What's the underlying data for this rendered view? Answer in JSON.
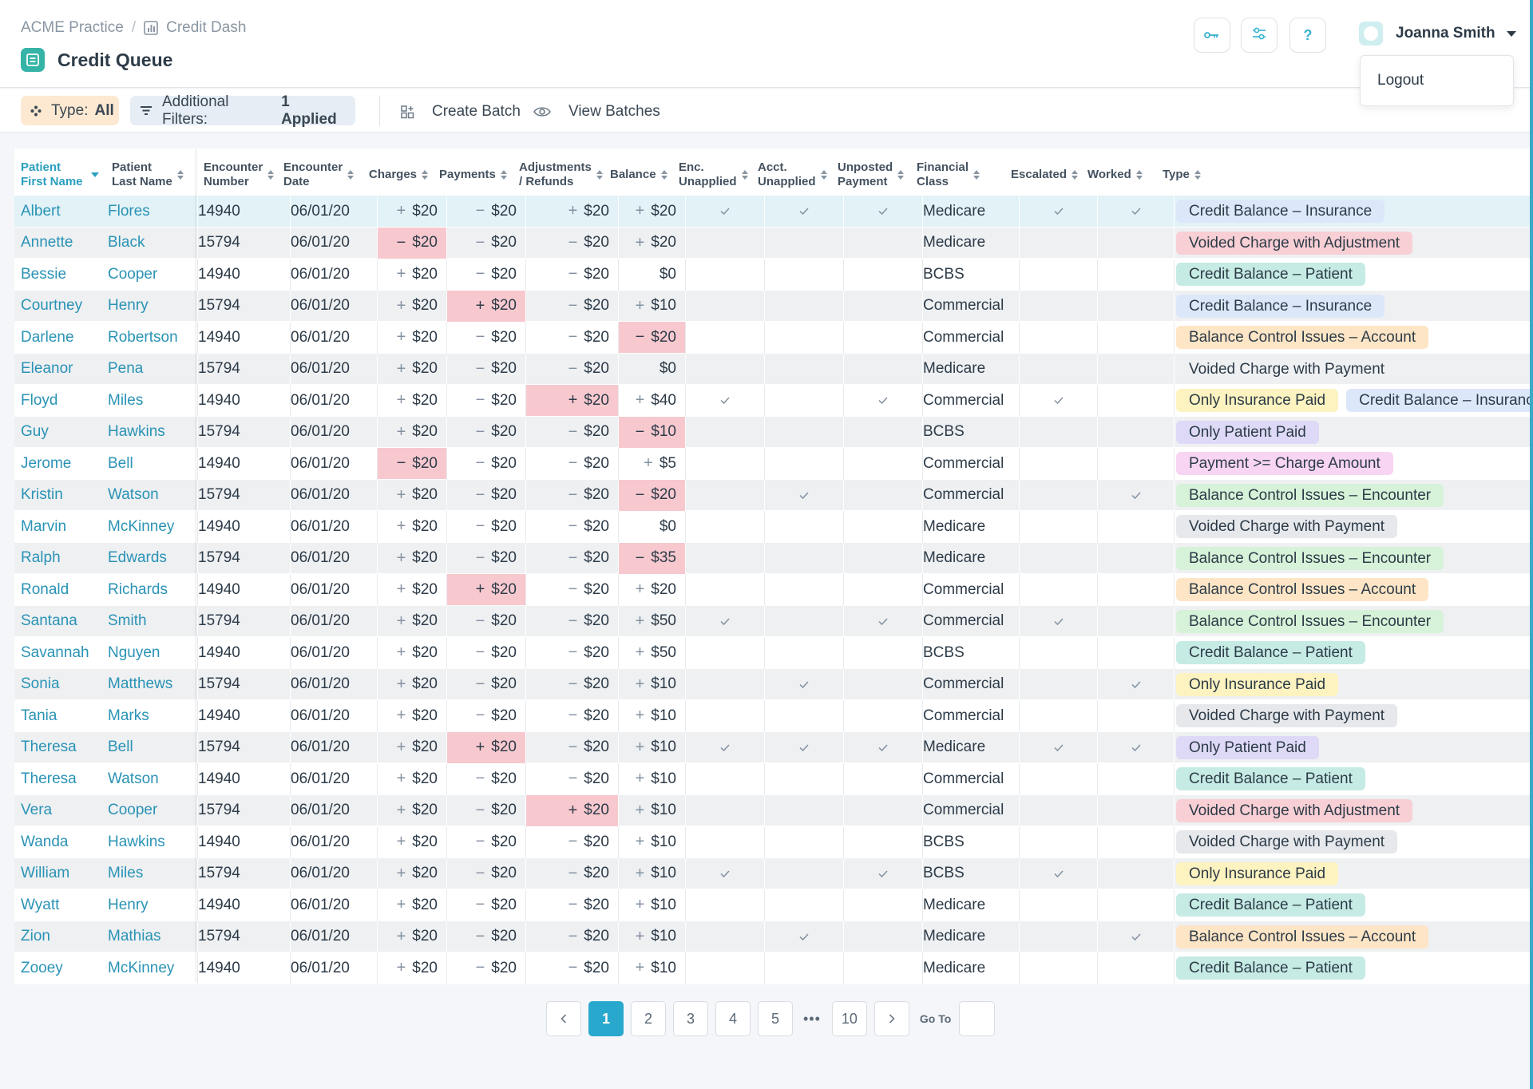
{
  "breadcrumb": {
    "root": "ACME Practice",
    "separator": "/",
    "current": "Credit Dash"
  },
  "page_title": "Credit Queue",
  "user": {
    "name": "Joanna Smith",
    "menu_item": "Logout"
  },
  "header_buttons": {
    "help": "?"
  },
  "toolbar": {
    "type_label": "Type:",
    "type_value": "All",
    "filters_label": "Additional Filters:",
    "filters_value": "1 Applied",
    "create_batch": "Create Batch",
    "view_batches": "View Batches"
  },
  "columns": [
    [
      "Patient",
      "First Name"
    ],
    [
      "Patient",
      "Last Name"
    ],
    [
      "Encounter",
      "Number"
    ],
    [
      "Encounter",
      "Date"
    ],
    [
      "Charges"
    ],
    [
      "Payments"
    ],
    [
      "Adjustments",
      "/ Refunds"
    ],
    [
      "Balance"
    ],
    [
      "Enc.",
      "Unapplied"
    ],
    [
      "Acct.",
      "Unapplied"
    ],
    [
      "Unposted",
      "Payment"
    ],
    [
      "Financial",
      "Class"
    ],
    [
      "Escalated"
    ],
    [
      "Worked"
    ],
    [
      "Type"
    ]
  ],
  "type_colors": {
    "Credit Balance – Insurance": "#dce8fa",
    "Voided Charge with Adjustment": "#f8cfd4",
    "Credit Balance – Patient": "#c6ebe4",
    "Balance Control Issues – Account": "#fde5c5",
    "Voided Charge with Payment": "#e6e8eb",
    "Only Insurance Paid": "#fdf3c0",
    "Only Patient Paid": "#ddd9f6",
    "Payment >= Charge Amount": "#f8d5f3",
    "Balance Control Issues – Encounter": "#d6f2d8"
  },
  "rows": [
    {
      "first": "Albert",
      "last": "Flores",
      "num": "14940",
      "date": "06/01/20",
      "charges": [
        "+",
        "$20",
        false
      ],
      "payments": [
        "−",
        "$20",
        false
      ],
      "adjustments": [
        "+",
        "$20",
        false
      ],
      "balance": [
        "+",
        "$20",
        false
      ],
      "enc": true,
      "acct": true,
      "unposted": true,
      "fclass": "Medicare",
      "escalated": true,
      "worked": true,
      "types": [
        [
          "Credit Balance – Insurance",
          true
        ]
      ],
      "selected": true
    },
    {
      "first": "Annette",
      "last": "Black",
      "num": "15794",
      "date": "06/01/20",
      "charges": [
        "−",
        "$20",
        true
      ],
      "payments": [
        "−",
        "$20",
        false
      ],
      "adjustments": [
        "−",
        "$20",
        false
      ],
      "balance": [
        "+",
        "$20",
        false
      ],
      "enc": false,
      "acct": false,
      "unposted": false,
      "fclass": "Medicare",
      "escalated": false,
      "worked": false,
      "types": [
        [
          "Voided Charge with Adjustment",
          true
        ]
      ]
    },
    {
      "first": "Bessie",
      "last": "Cooper",
      "num": "14940",
      "date": "06/01/20",
      "charges": [
        "+",
        "$20",
        false
      ],
      "payments": [
        "−",
        "$20",
        false
      ],
      "adjustments": [
        "−",
        "$20",
        false
      ],
      "balance": [
        "",
        "$0",
        false
      ],
      "enc": false,
      "acct": false,
      "unposted": false,
      "fclass": "BCBS",
      "escalated": false,
      "worked": false,
      "types": [
        [
          "Credit Balance – Patient",
          true
        ]
      ]
    },
    {
      "first": "Courtney",
      "last": "Henry",
      "num": "15794",
      "date": "06/01/20",
      "charges": [
        "+",
        "$20",
        false
      ],
      "payments": [
        "+",
        "$20",
        true
      ],
      "adjustments": [
        "−",
        "$20",
        false
      ],
      "balance": [
        "+",
        "$10",
        false
      ],
      "enc": false,
      "acct": false,
      "unposted": false,
      "fclass": "Commercial",
      "escalated": false,
      "worked": false,
      "types": [
        [
          "Credit Balance – Insurance",
          true
        ]
      ]
    },
    {
      "first": "Darlene",
      "last": "Robertson",
      "num": "14940",
      "date": "06/01/20",
      "charges": [
        "+",
        "$20",
        false
      ],
      "payments": [
        "−",
        "$20",
        false
      ],
      "adjustments": [
        "−",
        "$20",
        false
      ],
      "balance": [
        "−",
        "$20",
        true
      ],
      "enc": false,
      "acct": false,
      "unposted": false,
      "fclass": "Commercial",
      "escalated": false,
      "worked": false,
      "types": [
        [
          "Balance Control Issues – Account",
          true
        ]
      ]
    },
    {
      "first": "Eleanor",
      "last": "Pena",
      "num": "15794",
      "date": "06/01/20",
      "charges": [
        "+",
        "$20",
        false
      ],
      "payments": [
        "−",
        "$20",
        false
      ],
      "adjustments": [
        "−",
        "$20",
        false
      ],
      "balance": [
        "",
        "$0",
        false
      ],
      "enc": false,
      "acct": false,
      "unposted": false,
      "fclass": "Medicare",
      "escalated": false,
      "worked": false,
      "types": [
        [
          "Voided Charge with Payment",
          true
        ]
      ]
    },
    {
      "first": "Floyd",
      "last": "Miles",
      "num": "14940",
      "date": "06/01/20",
      "charges": [
        "+",
        "$20",
        false
      ],
      "payments": [
        "−",
        "$20",
        false
      ],
      "adjustments": [
        "+",
        "$20",
        true
      ],
      "balance": [
        "+",
        "$40",
        false
      ],
      "enc": true,
      "acct": false,
      "unposted": true,
      "fclass": "Commercial",
      "escalated": true,
      "worked": false,
      "types": [
        [
          "Only Insurance Paid",
          true
        ],
        [
          "Credit Balance – Insurance",
          true
        ]
      ]
    },
    {
      "first": "Guy",
      "last": "Hawkins",
      "num": "15794",
      "date": "06/01/20",
      "charges": [
        "+",
        "$20",
        false
      ],
      "payments": [
        "−",
        "$20",
        false
      ],
      "adjustments": [
        "−",
        "$20",
        false
      ],
      "balance": [
        "−",
        "$10",
        true
      ],
      "enc": false,
      "acct": false,
      "unposted": false,
      "fclass": "BCBS",
      "escalated": false,
      "worked": false,
      "types": [
        [
          "Only Patient Paid",
          true
        ]
      ]
    },
    {
      "first": "Jerome",
      "last": "Bell",
      "num": "14940",
      "date": "06/01/20",
      "charges": [
        "−",
        "$20",
        true
      ],
      "payments": [
        "−",
        "$20",
        false
      ],
      "adjustments": [
        "−",
        "$20",
        false
      ],
      "balance": [
        "+",
        "$5",
        false
      ],
      "enc": false,
      "acct": false,
      "unposted": false,
      "fclass": "Commercial",
      "escalated": false,
      "worked": false,
      "types": [
        [
          "Payment >= Charge Amount",
          true
        ]
      ]
    },
    {
      "first": "Kristin",
      "last": "Watson",
      "num": "15794",
      "date": "06/01/20",
      "charges": [
        "+",
        "$20",
        false
      ],
      "payments": [
        "−",
        "$20",
        false
      ],
      "adjustments": [
        "−",
        "$20",
        false
      ],
      "balance": [
        "−",
        "$20",
        true
      ],
      "enc": false,
      "acct": true,
      "unposted": false,
      "fclass": "Commercial",
      "escalated": false,
      "worked": true,
      "types": [
        [
          "Balance Control Issues – Encounter",
          true
        ]
      ]
    },
    {
      "first": "Marvin",
      "last": "McKinney",
      "num": "14940",
      "date": "06/01/20",
      "charges": [
        "+",
        "$20",
        false
      ],
      "payments": [
        "−",
        "$20",
        false
      ],
      "adjustments": [
        "−",
        "$20",
        false
      ],
      "balance": [
        "",
        "$0",
        false
      ],
      "enc": false,
      "acct": false,
      "unposted": false,
      "fclass": "Medicare",
      "escalated": false,
      "worked": false,
      "types": [
        [
          "Voided Charge with Payment",
          true
        ]
      ]
    },
    {
      "first": "Ralph",
      "last": "Edwards",
      "num": "15794",
      "date": "06/01/20",
      "charges": [
        "+",
        "$20",
        false
      ],
      "payments": [
        "−",
        "$20",
        false
      ],
      "adjustments": [
        "−",
        "$20",
        false
      ],
      "balance": [
        "−",
        "$35",
        true
      ],
      "enc": false,
      "acct": false,
      "unposted": false,
      "fclass": "Medicare",
      "escalated": false,
      "worked": false,
      "types": [
        [
          "Balance Control Issues – Encounter",
          true
        ]
      ]
    },
    {
      "first": "Ronald",
      "last": "Richards",
      "num": "14940",
      "date": "06/01/20",
      "charges": [
        "+",
        "$20",
        false
      ],
      "payments": [
        "+",
        "$20",
        true
      ],
      "adjustments": [
        "−",
        "$20",
        false
      ],
      "balance": [
        "+",
        "$20",
        false
      ],
      "enc": false,
      "acct": false,
      "unposted": false,
      "fclass": "Commercial",
      "escalated": false,
      "worked": false,
      "types": [
        [
          "Balance Control Issues – Account",
          true
        ]
      ]
    },
    {
      "first": "Santana",
      "last": "Smith",
      "num": "15794",
      "date": "06/01/20",
      "charges": [
        "+",
        "$20",
        false
      ],
      "payments": [
        "−",
        "$20",
        false
      ],
      "adjustments": [
        "−",
        "$20",
        false
      ],
      "balance": [
        "+",
        "$50",
        false
      ],
      "enc": true,
      "acct": false,
      "unposted": true,
      "fclass": "Commercial",
      "escalated": true,
      "worked": false,
      "types": [
        [
          "Balance Control Issues – Encounter",
          true
        ]
      ]
    },
    {
      "first": "Savannah",
      "last": "Nguyen",
      "num": "14940",
      "date": "06/01/20",
      "charges": [
        "+",
        "$20",
        false
      ],
      "payments": [
        "−",
        "$20",
        false
      ],
      "adjustments": [
        "−",
        "$20",
        false
      ],
      "balance": [
        "+",
        "$50",
        false
      ],
      "enc": false,
      "acct": false,
      "unposted": false,
      "fclass": "BCBS",
      "escalated": false,
      "worked": false,
      "types": [
        [
          "Credit Balance – Patient",
          true
        ]
      ]
    },
    {
      "first": "Sonia",
      "last": "Matthews",
      "num": "15794",
      "date": "06/01/20",
      "charges": [
        "+",
        "$20",
        false
      ],
      "payments": [
        "−",
        "$20",
        false
      ],
      "adjustments": [
        "−",
        "$20",
        false
      ],
      "balance": [
        "+",
        "$10",
        false
      ],
      "enc": false,
      "acct": true,
      "unposted": false,
      "fclass": "Commercial",
      "escalated": false,
      "worked": true,
      "types": [
        [
          "Only Insurance Paid",
          true
        ]
      ]
    },
    {
      "first": "Tania",
      "last": "Marks",
      "num": "14940",
      "date": "06/01/20",
      "charges": [
        "+",
        "$20",
        false
      ],
      "payments": [
        "−",
        "$20",
        false
      ],
      "adjustments": [
        "−",
        "$20",
        false
      ],
      "balance": [
        "+",
        "$10",
        false
      ],
      "enc": false,
      "acct": false,
      "unposted": false,
      "fclass": "Commercial",
      "escalated": false,
      "worked": false,
      "types": [
        [
          "Voided Charge with Payment",
          true
        ]
      ]
    },
    {
      "first": "Theresa",
      "last": "Bell",
      "num": "15794",
      "date": "06/01/20",
      "charges": [
        "+",
        "$20",
        false
      ],
      "payments": [
        "+",
        "$20",
        true
      ],
      "adjustments": [
        "−",
        "$20",
        false
      ],
      "balance": [
        "+",
        "$10",
        false
      ],
      "enc": true,
      "acct": true,
      "unposted": true,
      "fclass": "Medicare",
      "escalated": true,
      "worked": true,
      "types": [
        [
          "Only Patient Paid",
          true
        ]
      ]
    },
    {
      "first": "Theresa",
      "last": "Watson",
      "num": "14940",
      "date": "06/01/20",
      "charges": [
        "+",
        "$20",
        false
      ],
      "payments": [
        "−",
        "$20",
        false
      ],
      "adjustments": [
        "−",
        "$20",
        false
      ],
      "balance": [
        "+",
        "$10",
        false
      ],
      "enc": false,
      "acct": false,
      "unposted": false,
      "fclass": "Commercial",
      "escalated": false,
      "worked": false,
      "types": [
        [
          "Credit Balance – Patient",
          true
        ]
      ]
    },
    {
      "first": "Vera",
      "last": "Cooper",
      "num": "15794",
      "date": "06/01/20",
      "charges": [
        "+",
        "$20",
        false
      ],
      "payments": [
        "−",
        "$20",
        false
      ],
      "adjustments": [
        "+",
        "$20",
        true
      ],
      "balance": [
        "+",
        "$10",
        false
      ],
      "enc": false,
      "acct": false,
      "unposted": false,
      "fclass": "Commercial",
      "escalated": false,
      "worked": false,
      "types": [
        [
          "Voided Charge with Adjustment",
          true
        ]
      ]
    },
    {
      "first": "Wanda",
      "last": "Hawkins",
      "num": "14940",
      "date": "06/01/20",
      "charges": [
        "+",
        "$20",
        false
      ],
      "payments": [
        "−",
        "$20",
        false
      ],
      "adjustments": [
        "−",
        "$20",
        false
      ],
      "balance": [
        "+",
        "$10",
        false
      ],
      "enc": false,
      "acct": false,
      "unposted": false,
      "fclass": "BCBS",
      "escalated": false,
      "worked": false,
      "types": [
        [
          "Voided Charge with Payment",
          true
        ]
      ]
    },
    {
      "first": "William",
      "last": "Miles",
      "num": "15794",
      "date": "06/01/20",
      "charges": [
        "+",
        "$20",
        false
      ],
      "payments": [
        "−",
        "$20",
        false
      ],
      "adjustments": [
        "−",
        "$20",
        false
      ],
      "balance": [
        "+",
        "$10",
        false
      ],
      "enc": true,
      "acct": false,
      "unposted": true,
      "fclass": "BCBS",
      "escalated": true,
      "worked": false,
      "types": [
        [
          "Only Insurance Paid",
          true
        ]
      ]
    },
    {
      "first": "Wyatt",
      "last": "Henry",
      "num": "14940",
      "date": "06/01/20",
      "charges": [
        "+",
        "$20",
        false
      ],
      "payments": [
        "−",
        "$20",
        false
      ],
      "adjustments": [
        "−",
        "$20",
        false
      ],
      "balance": [
        "+",
        "$10",
        false
      ],
      "enc": false,
      "acct": false,
      "unposted": false,
      "fclass": "Medicare",
      "escalated": false,
      "worked": false,
      "types": [
        [
          "Credit Balance – Patient",
          true
        ]
      ]
    },
    {
      "first": "Zion",
      "last": "Mathias",
      "num": "15794",
      "date": "06/01/20",
      "charges": [
        "+",
        "$20",
        false
      ],
      "payments": [
        "−",
        "$20",
        false
      ],
      "adjustments": [
        "−",
        "$20",
        false
      ],
      "balance": [
        "+",
        "$10",
        false
      ],
      "enc": false,
      "acct": true,
      "unposted": false,
      "fclass": "Medicare",
      "escalated": false,
      "worked": true,
      "types": [
        [
          "Balance Control Issues – Account",
          true
        ]
      ]
    },
    {
      "first": "Zooey",
      "last": "McKinney",
      "num": "14940",
      "date": "06/01/20",
      "charges": [
        "+",
        "$20",
        false
      ],
      "payments": [
        "−",
        "$20",
        false
      ],
      "adjustments": [
        "−",
        "$20",
        false
      ],
      "balance": [
        "+",
        "$10",
        false
      ],
      "enc": false,
      "acct": false,
      "unposted": false,
      "fclass": "Medicare",
      "escalated": false,
      "worked": false,
      "types": [
        [
          "Credit Balance – Patient",
          true
        ]
      ]
    }
  ],
  "pagination": {
    "pages": [
      "1",
      "2",
      "3",
      "4",
      "5"
    ],
    "ellipsis": "•••",
    "last": "10",
    "current": "1",
    "goto_label": "Go To"
  }
}
